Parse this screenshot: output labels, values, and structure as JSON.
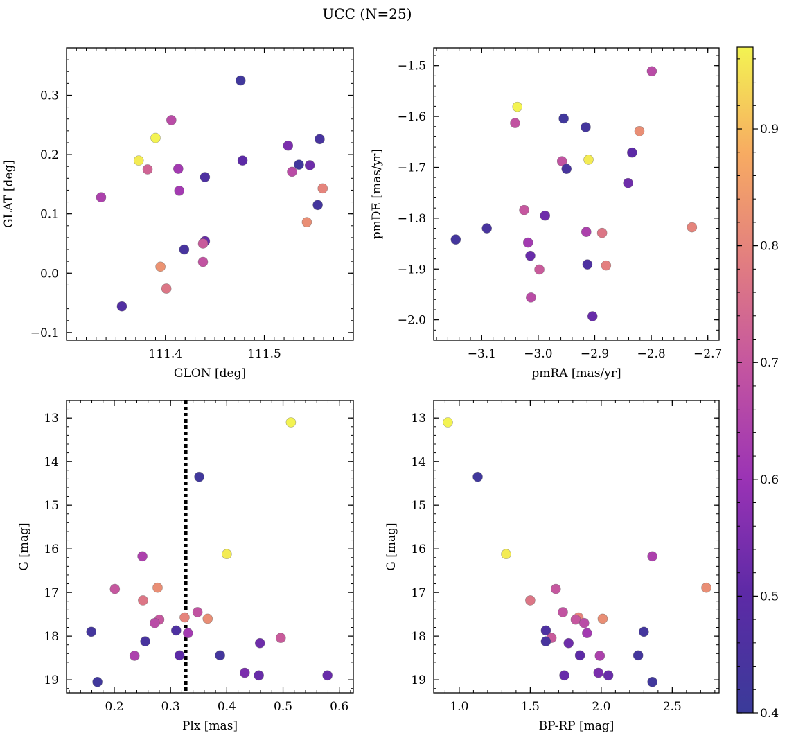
{
  "figure": {
    "title": "UCC (N=25)"
  },
  "colorbar": {
    "cmap": "plasma",
    "range": [
      0.4,
      0.97
    ],
    "ticks": [
      0.4,
      0.5,
      0.6,
      0.7,
      0.8,
      0.9
    ],
    "tick_labels": [
      "0.4",
      "0.5",
      "0.6",
      "0.7",
      "0.8",
      "0.9"
    ]
  },
  "chart_data": [
    {
      "type": "scatter",
      "id": "sky",
      "xlabel": "GLON [deg]",
      "ylabel": "GLAT [deg]",
      "xlim": [
        111.3,
        111.59
      ],
      "ylim": [
        -0.113,
        0.38
      ],
      "xticks": [
        111.4,
        111.5
      ],
      "xtick_labels": [
        "111.4",
        "111.5"
      ],
      "yticks": [
        -0.1,
        0.0,
        0.1,
        0.2,
        0.3
      ],
      "ytick_labels": [
        "−0.1",
        "0.0",
        "0.1",
        "0.2",
        "0.3"
      ],
      "points": [
        {
          "x": 111.476,
          "y": 0.325,
          "c": 0.42
        },
        {
          "x": 111.406,
          "y": 0.258,
          "c": 0.67
        },
        {
          "x": 111.39,
          "y": 0.228,
          "c": 0.97
        },
        {
          "x": 111.556,
          "y": 0.226,
          "c": 0.44
        },
        {
          "x": 111.524,
          "y": 0.215,
          "c": 0.55
        },
        {
          "x": 111.373,
          "y": 0.19,
          "c": 0.96
        },
        {
          "x": 111.478,
          "y": 0.19,
          "c": 0.5
        },
        {
          "x": 111.535,
          "y": 0.183,
          "c": 0.42
        },
        {
          "x": 111.546,
          "y": 0.182,
          "c": 0.53
        },
        {
          "x": 111.382,
          "y": 0.175,
          "c": 0.73
        },
        {
          "x": 111.413,
          "y": 0.176,
          "c": 0.62
        },
        {
          "x": 111.528,
          "y": 0.171,
          "c": 0.67
        },
        {
          "x": 111.44,
          "y": 0.162,
          "c": 0.46
        },
        {
          "x": 111.559,
          "y": 0.143,
          "c": 0.8
        },
        {
          "x": 111.414,
          "y": 0.139,
          "c": 0.62
        },
        {
          "x": 111.335,
          "y": 0.128,
          "c": 0.64
        },
        {
          "x": 111.554,
          "y": 0.115,
          "c": 0.43
        },
        {
          "x": 111.543,
          "y": 0.086,
          "c": 0.82
        },
        {
          "x": 111.44,
          "y": 0.054,
          "c": 0.52
        },
        {
          "x": 111.438,
          "y": 0.05,
          "c": 0.71
        },
        {
          "x": 111.419,
          "y": 0.04,
          "c": 0.44
        },
        {
          "x": 111.438,
          "y": 0.019,
          "c": 0.69
        },
        {
          "x": 111.395,
          "y": 0.011,
          "c": 0.83
        },
        {
          "x": 111.401,
          "y": -0.026,
          "c": 0.77
        },
        {
          "x": 111.356,
          "y": -0.056,
          "c": 0.47
        }
      ]
    },
    {
      "type": "scatter",
      "id": "pm",
      "xlabel": "pmRA [mas/yr]",
      "ylabel": "pmDE [mas/yr]",
      "xlim": [
        -3.185,
        -2.68
      ],
      "ylim": [
        -2.04,
        -1.465
      ],
      "xticks": [
        -3.1,
        -3.0,
        -2.9,
        -2.8,
        -2.7
      ],
      "xtick_labels": [
        "−3.1",
        "−3.0",
        "−2.9",
        "−2.8",
        "−2.7"
      ],
      "yticks": [
        -2.0,
        -1.9,
        -1.8,
        -1.7,
        -1.6,
        -1.5
      ],
      "ytick_labels": [
        "−2.0",
        "−1.9",
        "−1.8",
        "−1.7",
        "−1.6",
        "−1.5"
      ],
      "points": [
        {
          "x": -2.799,
          "y": -1.511,
          "c": 0.67
        },
        {
          "x": -3.037,
          "y": -1.581,
          "c": 0.97
        },
        {
          "x": -3.041,
          "y": -1.613,
          "c": 0.69
        },
        {
          "x": -2.955,
          "y": -1.604,
          "c": 0.42
        },
        {
          "x": -2.916,
          "y": -1.621,
          "c": 0.43
        },
        {
          "x": -2.821,
          "y": -1.629,
          "c": 0.82
        },
        {
          "x": -2.834,
          "y": -1.671,
          "c": 0.5
        },
        {
          "x": -2.958,
          "y": -1.688,
          "c": 0.69
        },
        {
          "x": -2.911,
          "y": -1.685,
          "c": 0.96
        },
        {
          "x": -2.95,
          "y": -1.703,
          "c": 0.44
        },
        {
          "x": -2.841,
          "y": -1.731,
          "c": 0.53
        },
        {
          "x": -3.025,
          "y": -1.784,
          "c": 0.7
        },
        {
          "x": -2.988,
          "y": -1.795,
          "c": 0.53
        },
        {
          "x": -2.728,
          "y": -1.818,
          "c": 0.8
        },
        {
          "x": -3.146,
          "y": -1.842,
          "c": 0.43
        },
        {
          "x": -3.091,
          "y": -1.82,
          "c": 0.44
        },
        {
          "x": -2.915,
          "y": -1.827,
          "c": 0.64
        },
        {
          "x": -2.887,
          "y": -1.829,
          "c": 0.77
        },
        {
          "x": -3.018,
          "y": -1.848,
          "c": 0.62
        },
        {
          "x": -3.014,
          "y": -1.874,
          "c": 0.52
        },
        {
          "x": -2.913,
          "y": -1.891,
          "c": 0.46
        },
        {
          "x": -2.88,
          "y": -1.893,
          "c": 0.79
        },
        {
          "x": -2.998,
          "y": -1.901,
          "c": 0.71
        },
        {
          "x": -3.013,
          "y": -1.956,
          "c": 0.67
        },
        {
          "x": -2.904,
          "y": -1.993,
          "c": 0.52
        }
      ]
    },
    {
      "type": "scatter",
      "id": "plx",
      "xlabel": "Plx [mas]",
      "ylabel": "G [mag]",
      "xlim": [
        0.115,
        0.625
      ],
      "ylim": [
        19.3,
        12.6
      ],
      "invert_y": true,
      "xticks": [
        0.2,
        0.3,
        0.4,
        0.5,
        0.6
      ],
      "xtick_labels": [
        "0.2",
        "0.3",
        "0.4",
        "0.5",
        "0.6"
      ],
      "yticks": [
        13,
        14,
        15,
        16,
        17,
        18,
        19
      ],
      "ytick_labels": [
        "13",
        "14",
        "15",
        "16",
        "17",
        "18",
        "19"
      ],
      "vline": {
        "x": 0.327,
        "style": "dotted"
      },
      "points": [
        {
          "x": 0.514,
          "y": 13.1,
          "c": 0.97
        },
        {
          "x": 0.351,
          "y": 14.35,
          "c": 0.42
        },
        {
          "x": 0.4,
          "y": 16.12,
          "c": 0.96
        },
        {
          "x": 0.25,
          "y": 16.17,
          "c": 0.64
        },
        {
          "x": 0.201,
          "y": 16.92,
          "c": 0.7
        },
        {
          "x": 0.277,
          "y": 16.89,
          "c": 0.82
        },
        {
          "x": 0.251,
          "y": 17.18,
          "c": 0.77
        },
        {
          "x": 0.348,
          "y": 17.45,
          "c": 0.69
        },
        {
          "x": 0.325,
          "y": 17.57,
          "c": 0.8
        },
        {
          "x": 0.366,
          "y": 17.6,
          "c": 0.82
        },
        {
          "x": 0.28,
          "y": 17.62,
          "c": 0.7
        },
        {
          "x": 0.272,
          "y": 17.7,
          "c": 0.67
        },
        {
          "x": 0.159,
          "y": 17.9,
          "c": 0.43
        },
        {
          "x": 0.31,
          "y": 17.87,
          "c": 0.46
        },
        {
          "x": 0.331,
          "y": 17.93,
          "c": 0.62
        },
        {
          "x": 0.496,
          "y": 18.04,
          "c": 0.71
        },
        {
          "x": 0.255,
          "y": 18.12,
          "c": 0.44
        },
        {
          "x": 0.459,
          "y": 18.16,
          "c": 0.53
        },
        {
          "x": 0.236,
          "y": 18.45,
          "c": 0.64
        },
        {
          "x": 0.316,
          "y": 18.44,
          "c": 0.5
        },
        {
          "x": 0.388,
          "y": 18.44,
          "c": 0.43
        },
        {
          "x": 0.432,
          "y": 18.84,
          "c": 0.55
        },
        {
          "x": 0.457,
          "y": 18.9,
          "c": 0.52
        },
        {
          "x": 0.579,
          "y": 18.9,
          "c": 0.52
        },
        {
          "x": 0.17,
          "y": 19.05,
          "c": 0.42
        }
      ]
    },
    {
      "type": "scatter",
      "id": "cmd",
      "xlabel": "BP-RP [mag]",
      "ylabel": "G [mag]",
      "xlim": [
        0.82,
        2.83
      ],
      "ylim": [
        19.3,
        12.6
      ],
      "invert_y": true,
      "xticks": [
        1.0,
        1.5,
        2.0,
        2.5
      ],
      "xtick_labels": [
        "1.0",
        "1.5",
        "2.0",
        "2.5"
      ],
      "yticks": [
        13,
        14,
        15,
        16,
        17,
        18,
        19
      ],
      "ytick_labels": [
        "13",
        "14",
        "15",
        "16",
        "17",
        "18",
        "19"
      ],
      "points": [
        {
          "x": 0.92,
          "y": 13.1,
          "c": 0.97
        },
        {
          "x": 1.13,
          "y": 14.35,
          "c": 0.42
        },
        {
          "x": 1.33,
          "y": 16.12,
          "c": 0.96
        },
        {
          "x": 2.36,
          "y": 16.17,
          "c": 0.64
        },
        {
          "x": 1.68,
          "y": 16.92,
          "c": 0.7
        },
        {
          "x": 2.74,
          "y": 16.89,
          "c": 0.82
        },
        {
          "x": 1.5,
          "y": 17.18,
          "c": 0.77
        },
        {
          "x": 1.73,
          "y": 17.45,
          "c": 0.69
        },
        {
          "x": 1.84,
          "y": 17.57,
          "c": 0.8
        },
        {
          "x": 2.01,
          "y": 17.6,
          "c": 0.82
        },
        {
          "x": 1.82,
          "y": 17.62,
          "c": 0.7
        },
        {
          "x": 1.88,
          "y": 17.7,
          "c": 0.67
        },
        {
          "x": 1.61,
          "y": 17.87,
          "c": 0.46
        },
        {
          "x": 2.3,
          "y": 17.9,
          "c": 0.43
        },
        {
          "x": 1.9,
          "y": 17.93,
          "c": 0.62
        },
        {
          "x": 1.65,
          "y": 18.04,
          "c": 0.71
        },
        {
          "x": 1.61,
          "y": 18.12,
          "c": 0.44
        },
        {
          "x": 1.77,
          "y": 18.16,
          "c": 0.53
        },
        {
          "x": 1.85,
          "y": 18.44,
          "c": 0.5
        },
        {
          "x": 1.99,
          "y": 18.45,
          "c": 0.64
        },
        {
          "x": 2.26,
          "y": 18.44,
          "c": 0.43
        },
        {
          "x": 1.98,
          "y": 18.84,
          "c": 0.55
        },
        {
          "x": 1.74,
          "y": 18.9,
          "c": 0.52
        },
        {
          "x": 2.05,
          "y": 18.9,
          "c": 0.52
        },
        {
          "x": 2.36,
          "y": 19.05,
          "c": 0.42
        }
      ]
    }
  ]
}
